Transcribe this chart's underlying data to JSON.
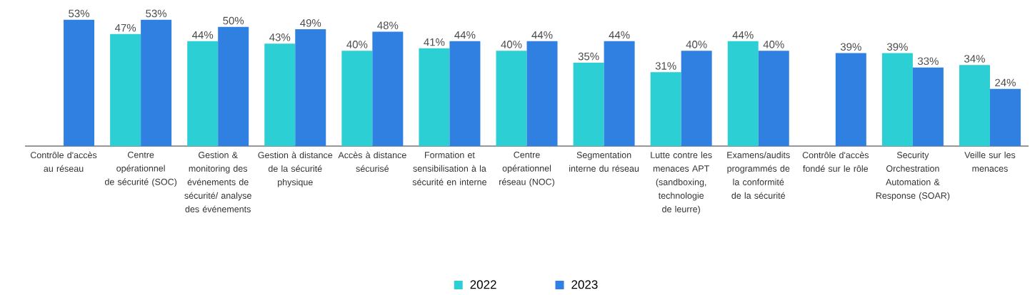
{
  "chart_data": {
    "type": "bar",
    "categories": [
      "Contrôle d'accès au réseau",
      "Centre opérationnel de sécurité (SOC)",
      "Gestion & monitoring des événements de sécurité/ analyse des événements",
      "Gestion à distance de la sécurité physique",
      "Accès à distance sécurisé",
      "Formation et sensibilisation à la sécurité en interne",
      "Centre opérationnel réseau (NOC)",
      "Segmentation interne du réseau",
      "Lutte contre les menaces APT (sandboxing, technologie de leurre)",
      "Examens/audits programmés de la conformité de la sécurité",
      "Contrôle d'accès fondé sur le rôle",
      "Security Orchestration Automation & Response (SOAR)",
      "Veille sur les menaces"
    ],
    "series": [
      {
        "name": "2022",
        "color": "#2ccfd3",
        "values": [
          null,
          47,
          44,
          43,
          40,
          41,
          40,
          35,
          31,
          44,
          null,
          39,
          34
        ],
        "value_labels": [
          null,
          "47%",
          "44%",
          "43%",
          "40%",
          "41%",
          "40%",
          "35%",
          "31%",
          "44%",
          null,
          "39%",
          "34%"
        ]
      },
      {
        "name": "2023",
        "color": "#2f80e0",
        "values": [
          53,
          53,
          50,
          49,
          48,
          44,
          44,
          44,
          40,
          40,
          39,
          33,
          24
        ],
        "value_labels": [
          "53%",
          "53%",
          "50%",
          "49%",
          "48%",
          "44%",
          "44%",
          "44%",
          "40%",
          "40%",
          "39%",
          "33%",
          "24%"
        ]
      }
    ],
    "legend": "bottom"
  }
}
